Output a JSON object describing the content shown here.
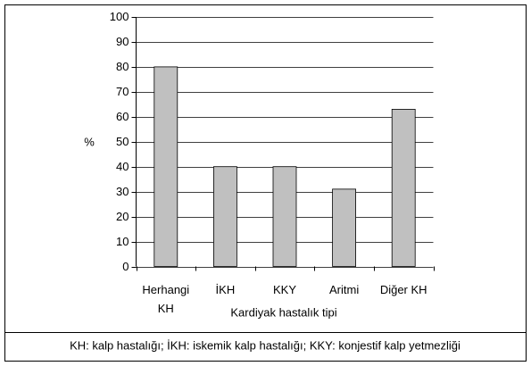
{
  "chart_data": {
    "type": "bar",
    "categories": [
      "Herhangi KH",
      "İKH",
      "KKY",
      "Aritmi",
      "Diğer KH"
    ],
    "values": [
      80,
      40,
      40,
      31,
      63
    ],
    "color": "#c0c0c0",
    "ylim": [
      0,
      100
    ],
    "yticks": [
      0,
      10,
      20,
      30,
      40,
      50,
      60,
      70,
      80,
      90,
      100
    ],
    "grid": true,
    "y_label": "%",
    "x_label": "Kardiyak hastalık tipi",
    "footnote": "KH: kalp hastalığı; İKH: iskemik kalp hastalığı; KKY: konjestif kalp yetmezliği"
  }
}
